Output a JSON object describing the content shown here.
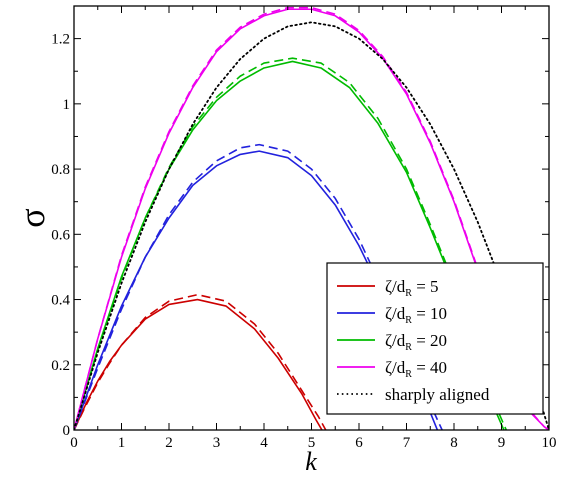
{
  "chart_data": {
    "type": "line",
    "title": "",
    "xlabel": "k",
    "ylabel": "σ",
    "xlim": [
      0,
      10
    ],
    "ylim": [
      0,
      1.3
    ],
    "x_ticks": [
      0,
      1,
      2,
      3,
      4,
      5,
      6,
      7,
      8,
      9,
      10
    ],
    "x_tick_labels": [
      "0",
      "1",
      "2",
      "3",
      "4",
      "5",
      "6",
      "7",
      "8",
      "9",
      "10"
    ],
    "y_ticks": [
      0,
      0.2,
      0.4,
      0.6,
      0.8,
      1.0,
      1.2
    ],
    "y_tick_labels": [
      "0",
      "0.2",
      "0.4",
      "0.6",
      "0.8",
      "1",
      "1.2"
    ],
    "grid": false,
    "legend_position": "bottom-right",
    "legend": [
      {
        "series_index": 0,
        "prefix": "ζ/d",
        "subscript": "R",
        "suffix": " = 5"
      },
      {
        "series_index": 2,
        "prefix": "ζ/d",
        "subscript": "R",
        "suffix": " = 10"
      },
      {
        "series_index": 4,
        "prefix": "ζ/d",
        "subscript": "R",
        "suffix": " = 20"
      },
      {
        "series_index": 6,
        "prefix": "ζ/d",
        "subscript": "R",
        "suffix": " = 40"
      },
      {
        "series_index": 8,
        "prefix": "sharply aligned",
        "subscript": "",
        "suffix": ""
      }
    ],
    "series": [
      {
        "color": "#cc0000",
        "style": "solid",
        "x": [
          0,
          0.25,
          0.5,
          0.75,
          1.0,
          1.5,
          2.0,
          2.6,
          3.2,
          3.8,
          4.3,
          4.8,
          5.1,
          5.22
        ],
        "y": [
          0,
          0.08,
          0.15,
          0.21,
          0.26,
          0.34,
          0.385,
          0.4,
          0.38,
          0.31,
          0.22,
          0.11,
          0.03,
          0
        ]
      },
      {
        "color": "#cc0000",
        "style": "dashed",
        "x": [
          0,
          0.25,
          0.5,
          0.75,
          1.0,
          1.5,
          2.0,
          2.6,
          3.2,
          3.8,
          4.3,
          4.8,
          5.15,
          5.3
        ],
        "y": [
          0,
          0.075,
          0.145,
          0.205,
          0.26,
          0.345,
          0.395,
          0.415,
          0.395,
          0.325,
          0.235,
          0.12,
          0.04,
          0
        ]
      },
      {
        "color": "#2222dd",
        "style": "solid",
        "x": [
          0,
          0.5,
          1.0,
          1.5,
          2.0,
          2.5,
          3.0,
          3.5,
          3.9,
          4.5,
          5.0,
          5.5,
          6.0,
          6.5,
          7.0,
          7.4,
          7.65
        ],
        "y": [
          0,
          0.2,
          0.38,
          0.53,
          0.65,
          0.75,
          0.81,
          0.845,
          0.855,
          0.835,
          0.78,
          0.69,
          0.565,
          0.415,
          0.24,
          0.09,
          0
        ]
      },
      {
        "color": "#2222dd",
        "style": "dashed",
        "x": [
          0,
          0.5,
          1.0,
          1.5,
          2.0,
          2.5,
          3.0,
          3.5,
          3.9,
          4.5,
          5.0,
          5.5,
          6.0,
          6.5,
          7.0,
          7.45,
          7.75
        ],
        "y": [
          0,
          0.19,
          0.37,
          0.53,
          0.66,
          0.76,
          0.825,
          0.865,
          0.875,
          0.855,
          0.8,
          0.71,
          0.585,
          0.43,
          0.255,
          0.095,
          0
        ]
      },
      {
        "color": "#00bb00",
        "style": "solid",
        "x": [
          0,
          0.5,
          1.0,
          1.5,
          2.0,
          2.5,
          3.0,
          3.5,
          4.0,
          4.6,
          5.2,
          5.8,
          6.4,
          7.0,
          7.5,
          8.0,
          8.5,
          8.9,
          9.05
        ],
        "y": [
          0,
          0.25,
          0.47,
          0.65,
          0.8,
          0.92,
          1.01,
          1.07,
          1.11,
          1.13,
          1.11,
          1.05,
          0.94,
          0.79,
          0.62,
          0.44,
          0.22,
          0.05,
          0
        ]
      },
      {
        "color": "#00bb00",
        "style": "dashed",
        "x": [
          0,
          0.5,
          1.0,
          1.5,
          2.0,
          2.5,
          3.0,
          3.5,
          4.0,
          4.6,
          5.2,
          5.8,
          6.4,
          7.0,
          7.5,
          8.0,
          8.5,
          8.95,
          9.1
        ],
        "y": [
          0,
          0.245,
          0.465,
          0.65,
          0.805,
          0.93,
          1.02,
          1.085,
          1.125,
          1.14,
          1.125,
          1.065,
          0.955,
          0.8,
          0.63,
          0.45,
          0.23,
          0.05,
          0
        ]
      },
      {
        "color": "#ee00ee",
        "style": "solid",
        "x": [
          0,
          0.5,
          1.0,
          1.5,
          2.0,
          2.5,
          3.0,
          3.5,
          4.0,
          4.5,
          5.0,
          5.5,
          6.0,
          6.5,
          7.0,
          7.5,
          8.0,
          8.5,
          9.0,
          9.5,
          9.9,
          10.0
        ],
        "y": [
          0,
          0.28,
          0.53,
          0.74,
          0.91,
          1.05,
          1.16,
          1.23,
          1.27,
          1.29,
          1.29,
          1.27,
          1.22,
          1.14,
          1.03,
          0.88,
          0.7,
          0.49,
          0.27,
          0.07,
          0.01,
          0
        ]
      },
      {
        "color": "#ee00ee",
        "style": "dashed",
        "x": [
          0,
          0.5,
          1.0,
          1.5,
          2.0,
          2.5,
          3.0,
          3.5,
          4.0,
          4.5,
          5.0,
          5.5,
          6.0,
          6.5,
          7.0,
          7.5,
          8.0,
          8.5,
          9.0,
          9.5,
          9.9,
          10.0
        ],
        "y": [
          0,
          0.28,
          0.535,
          0.745,
          0.915,
          1.055,
          1.165,
          1.235,
          1.275,
          1.295,
          1.295,
          1.275,
          1.225,
          1.145,
          1.035,
          0.885,
          0.705,
          0.495,
          0.275,
          0.075,
          0.01,
          0
        ]
      },
      {
        "color": "#000000",
        "style": "dotted",
        "x": [
          0,
          0.5,
          1.0,
          1.5,
          2.0,
          2.5,
          3.0,
          3.5,
          4.0,
          4.5,
          5.0,
          5.5,
          6.0,
          6.5,
          7.0,
          7.5,
          8.0,
          8.5,
          9.0,
          9.5,
          10.0
        ],
        "y": [
          0,
          0.2375,
          0.45,
          0.6375,
          0.8,
          0.9375,
          1.05,
          1.1375,
          1.2,
          1.2375,
          1.25,
          1.2375,
          1.2,
          1.1375,
          1.05,
          0.9375,
          0.8,
          0.6375,
          0.45,
          0.2375,
          0
        ]
      }
    ]
  }
}
